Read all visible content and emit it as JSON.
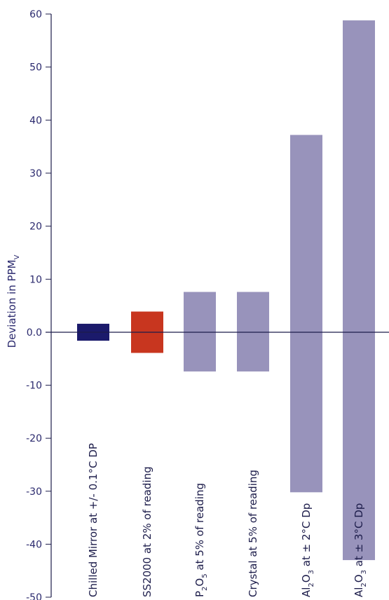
{
  "chart_data": {
    "type": "bar",
    "title": "",
    "xlabel": "",
    "ylabel": "Deviation in PPM",
    "ylabel_subscript": "V",
    "ylim": [
      -50,
      60
    ],
    "yticks": [
      60,
      50,
      40,
      30,
      20,
      10,
      0,
      -10,
      -20,
      -30,
      -40,
      -50
    ],
    "ytick_labels": [
      "60",
      "50",
      "40",
      "30",
      "20",
      "10",
      "0.0",
      "-10",
      "-20",
      "-30",
      "-40",
      "-50"
    ],
    "categories": [
      {
        "label": "Chilled Mirror at +/- 0.1°C DP",
        "parts": [
          {
            "t": "Chilled Mirror at +/- 0.1°C DP"
          }
        ]
      },
      {
        "label": "SS2000 at 2% of reading",
        "parts": [
          {
            "t": "SS2000 at 2% of reading"
          }
        ]
      },
      {
        "label": "P2O5 at 5% of reading",
        "parts": [
          {
            "t": "P"
          },
          {
            "t": "2",
            "sub": true
          },
          {
            "t": "O"
          },
          {
            "t": "5",
            "sub": true
          },
          {
            "t": " at 5% of reading"
          }
        ]
      },
      {
        "label": "Crystal at 5% of reading",
        "parts": [
          {
            "t": "Crystal at 5% of reading"
          }
        ]
      },
      {
        "label": "Al2O3 at ± 2°C Dp",
        "parts": [
          {
            "t": "Al"
          },
          {
            "t": "2",
            "sub": true
          },
          {
            "t": "O"
          },
          {
            "t": "3",
            "sub": true
          },
          {
            "t": " at ± 2°C Dp"
          }
        ]
      },
      {
        "label": "Al2O3 at ± 3°C Dp",
        "parts": [
          {
            "t": "Al"
          },
          {
            "t": "2",
            "sub": true
          },
          {
            "t": "O"
          },
          {
            "t": "3",
            "sub": true
          },
          {
            "t": " at ± 3°C Dp"
          }
        ]
      }
    ],
    "ranges": [
      {
        "low": -1.6,
        "high": 1.6
      },
      {
        "low": -3.9,
        "high": 3.9
      },
      {
        "low": -7.4,
        "high": 7.6
      },
      {
        "low": -7.4,
        "high": 7.6
      },
      {
        "low": -30.2,
        "high": 37.2
      },
      {
        "low": -43.0,
        "high": 58.8
      }
    ],
    "colors": [
      "#1b1a6b",
      "#c8361f",
      "#9893bb",
      "#9893bb",
      "#9893bb",
      "#9893bb"
    ],
    "grid": false,
    "legend": "none"
  }
}
